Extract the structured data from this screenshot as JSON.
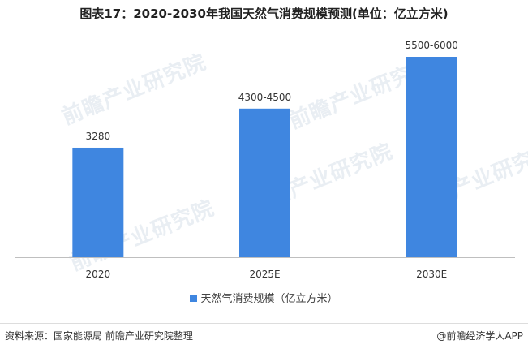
{
  "title": "图表17：2020-2030年我国天然气消费规模预测(单位：亿立方米)",
  "legend_label": "天然气消费规模（亿立方米）",
  "source": "资料来源：国家能源局 前瞻产业研究院整理",
  "brand": "@前瞻经济学人APP",
  "watermark_text": "前瞻产业研究院",
  "colors": {
    "bar": "#3f86e0",
    "axis": "#bfbfbf",
    "text": "#333333"
  },
  "chart_data": {
    "type": "bar",
    "title": "图表17：2020-2030年我国天然气消费规模预测(单位：亿立方米)",
    "xlabel": "",
    "ylabel": "",
    "categories": [
      "2020",
      "2025E",
      "2030E"
    ],
    "series": [
      {
        "name": "天然气消费规模（亿立方米）",
        "values": [
          3280,
          4450,
          6000
        ],
        "data_labels": [
          "3280",
          "4300-4500",
          "5500-6000"
        ]
      }
    ],
    "ylim": [
      0,
      6000
    ],
    "grid": false,
    "legend": "bottom"
  }
}
